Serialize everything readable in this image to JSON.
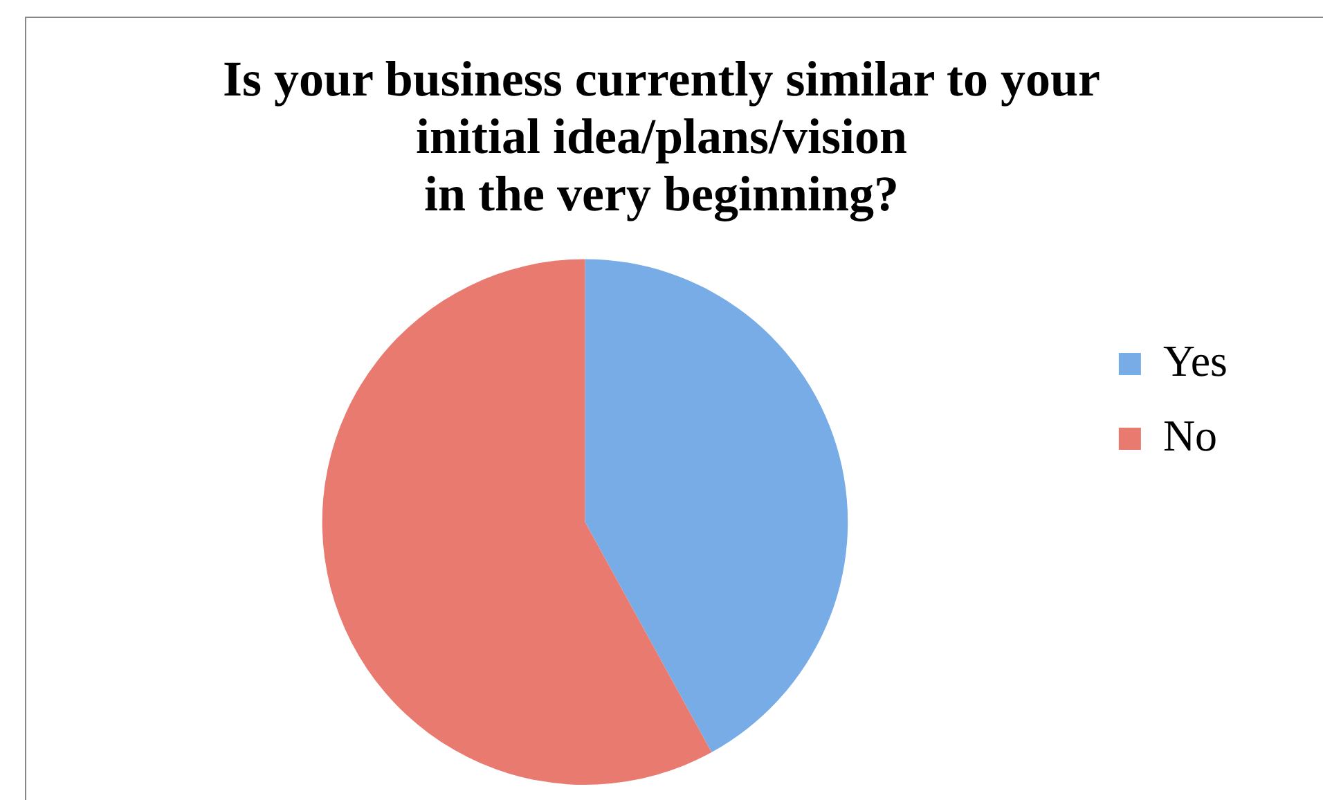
{
  "chart_data": {
    "type": "pie",
    "title": "Is your business currently similar to your\ninitial idea/plans/vision\nin the very beginning?",
    "categories": [
      "Yes",
      "No"
    ],
    "values": [
      42,
      58
    ],
    "colors": [
      "#78ace6",
      "#e87a70"
    ],
    "legend": "right"
  }
}
